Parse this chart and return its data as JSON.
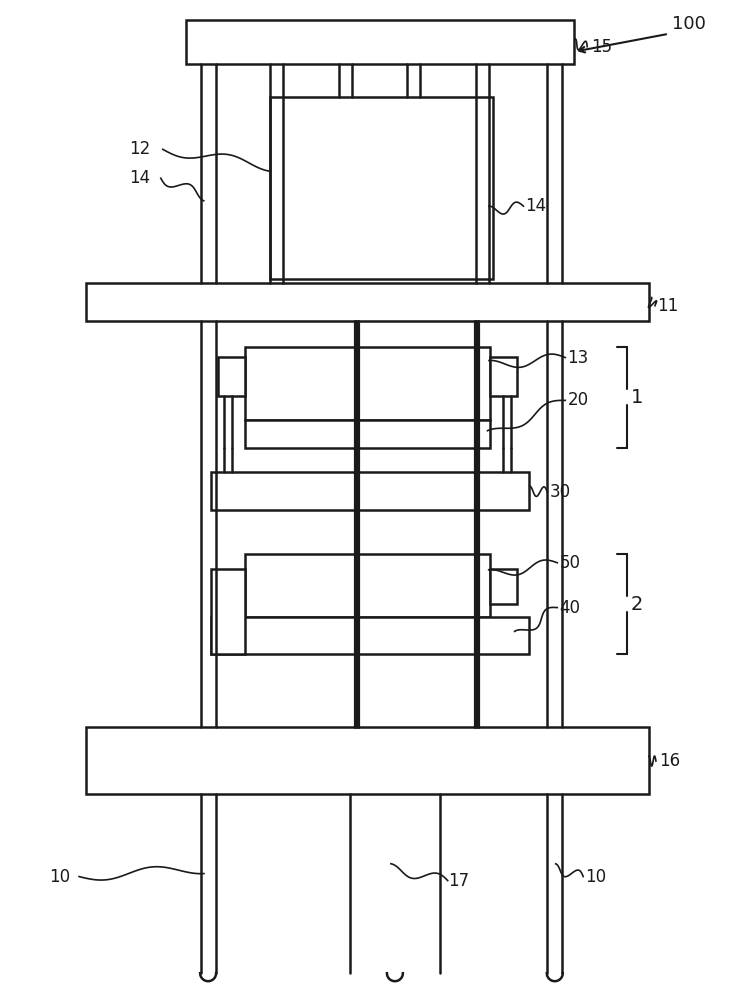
{
  "bg_color": "#ffffff",
  "line_color": "#1a1a1a",
  "line_width": 1.8,
  "fig_width": 7.39,
  "fig_height": 10.0
}
